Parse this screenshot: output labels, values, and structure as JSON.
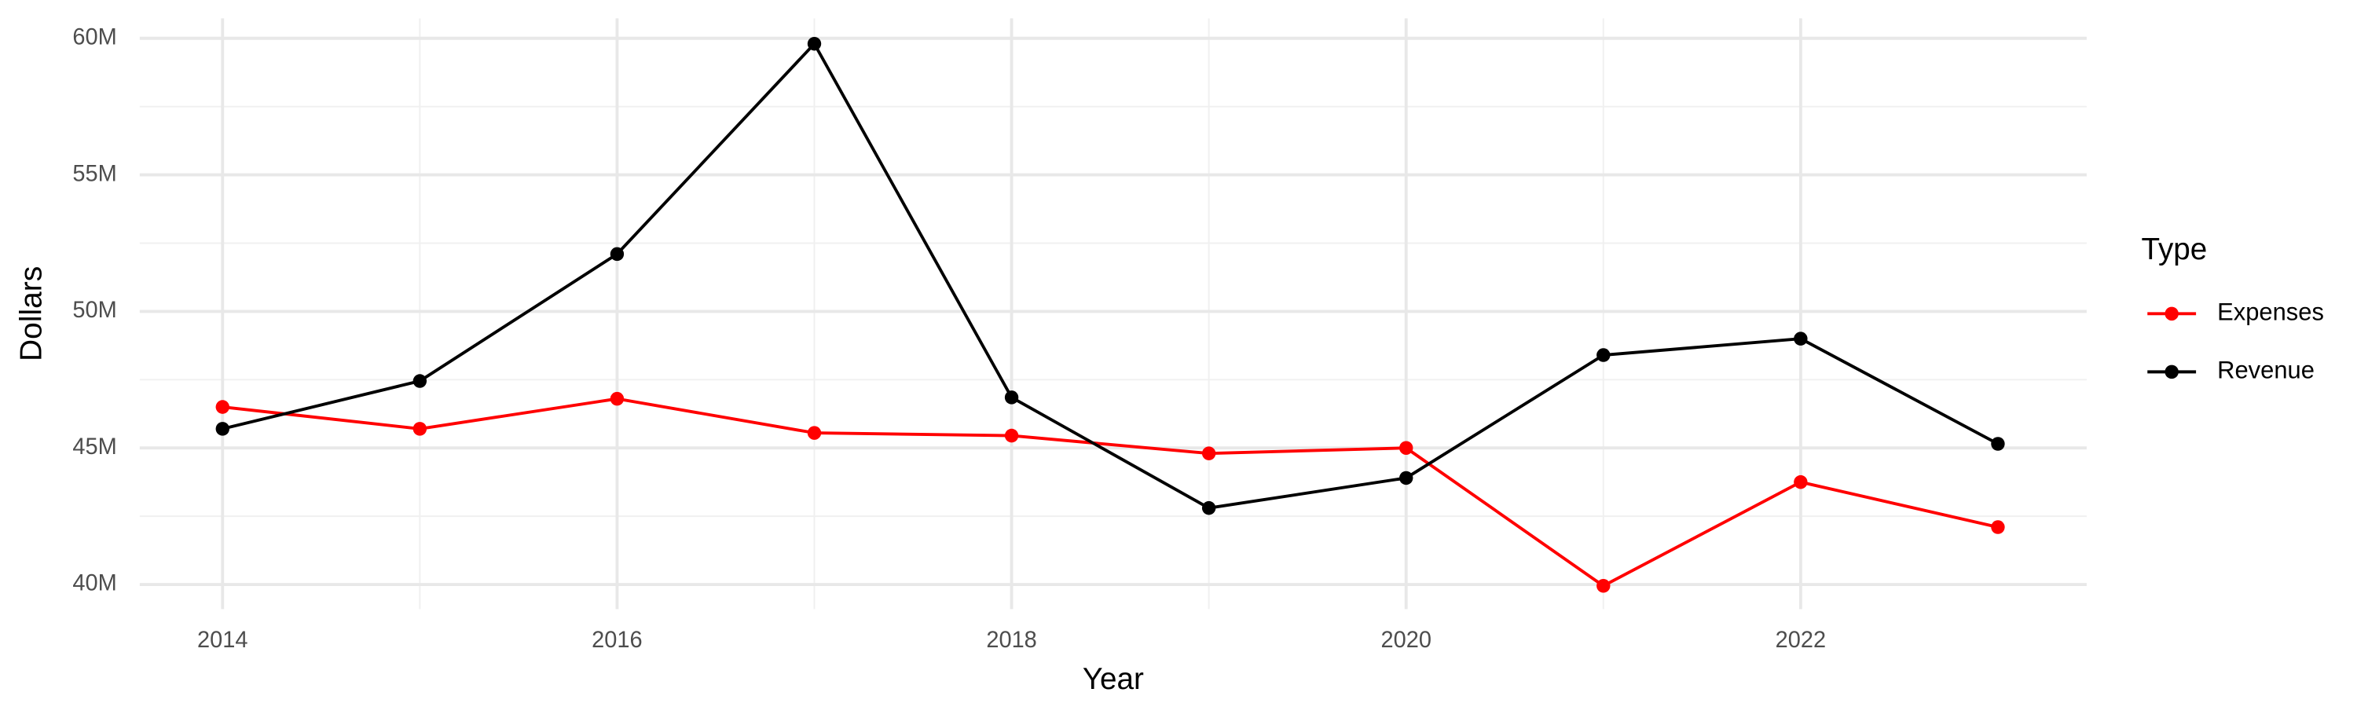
{
  "chart_data": {
    "type": "line",
    "x_label": "Year",
    "y_label": "Dollars",
    "legend_title": "Type",
    "legend_position": "right",
    "grid": true,
    "x": [
      2014,
      2015,
      2016,
      2017,
      2018,
      2019,
      2020,
      2021,
      2022,
      2023
    ],
    "series": [
      {
        "name": "Expenses",
        "color": "#ff0000",
        "values": [
          46500000,
          45700000,
          46800000,
          45550000,
          45450000,
          44800000,
          45000000,
          39950000,
          43750000,
          42100000
        ]
      },
      {
        "name": "Revenue",
        "color": "#000000",
        "values": [
          45700000,
          47450000,
          52100000,
          59800000,
          46850000,
          42800000,
          43900000,
          48400000,
          49000000,
          45150000
        ]
      }
    ],
    "xlim": [
      2013.58,
      2023.45
    ],
    "xticks": [
      2014,
      2016,
      2018,
      2020,
      2022
    ],
    "ylim": [
      39100000,
      60730000
    ],
    "yticks": [
      {
        "value": 40000000,
        "label": "40M"
      },
      {
        "value": 45000000,
        "label": "45M"
      },
      {
        "value": 50000000,
        "label": "50M"
      },
      {
        "value": 55000000,
        "label": "55M"
      },
      {
        "value": 60000000,
        "label": "60M"
      }
    ]
  }
}
